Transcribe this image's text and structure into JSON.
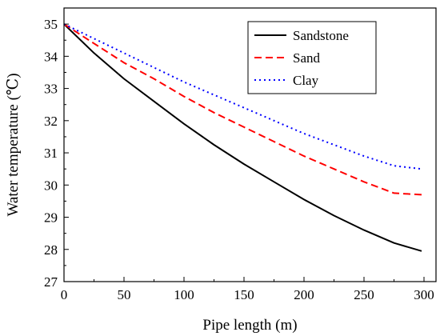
{
  "chart_data": {
    "type": "line",
    "xlabel": "Pipe length (m)",
    "ylabel": "Water temperature (℃)",
    "xlim": [
      0,
      310
    ],
    "ylim": [
      27,
      35.5
    ],
    "xticks": [
      0,
      50,
      100,
      150,
      200,
      250,
      300
    ],
    "yticks": [
      27,
      28,
      29,
      30,
      31,
      32,
      33,
      34,
      35
    ],
    "grid": false,
    "legend_position": "top-right",
    "x": [
      0,
      25,
      50,
      75,
      100,
      125,
      150,
      175,
      200,
      225,
      250,
      275,
      298
    ],
    "series": [
      {
        "name": "Sandstone",
        "color": "#000000",
        "dash": "solid",
        "values": [
          35.0,
          34.1,
          33.3,
          32.6,
          31.9,
          31.25,
          30.65,
          30.1,
          29.55,
          29.05,
          28.6,
          28.2,
          27.95
        ]
      },
      {
        "name": "Sand",
        "color": "#ff0000",
        "dash": "dashed",
        "values": [
          35.0,
          34.4,
          33.8,
          33.3,
          32.75,
          32.25,
          31.8,
          31.35,
          30.9,
          30.5,
          30.1,
          29.75,
          29.7
        ]
      },
      {
        "name": "Clay",
        "color": "#0000ff",
        "dash": "dotted",
        "values": [
          35.0,
          34.55,
          34.1,
          33.65,
          33.2,
          32.8,
          32.4,
          32.0,
          31.6,
          31.25,
          30.9,
          30.6,
          30.5
        ]
      }
    ]
  }
}
